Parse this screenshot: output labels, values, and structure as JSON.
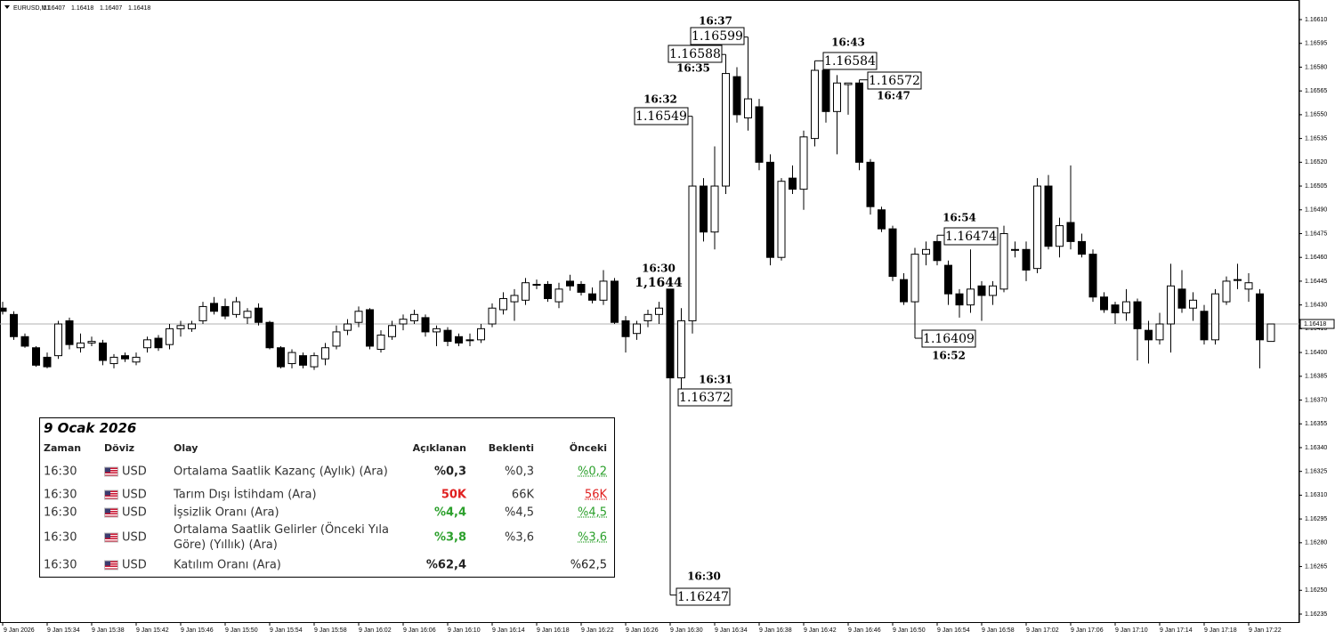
{
  "header": {
    "symbol": "EURUSD,M1"
  },
  "chart_data": {
    "type": "candlestick",
    "categories": [
      "9 Jan 2026",
      null,
      null,
      null,
      "9 Jan 15:34",
      null,
      null,
      null,
      "9 Jan 15:38",
      null,
      null,
      null,
      "9 Jan 15:42",
      null,
      null,
      null,
      "9 Jan 15:46",
      null,
      null,
      null,
      "9 Jan 15:50",
      null,
      null,
      null,
      "9 Jan 15:54",
      null,
      null,
      null,
      "9 Jan 15:58",
      null,
      null,
      null,
      "9 Jan 16:02",
      null,
      null,
      null,
      "9 Jan 16:06",
      null,
      null,
      null,
      "9 Jan 16:10",
      null,
      null,
      null,
      "9 Jan 16:14",
      null,
      null,
      null,
      "9 Jan 16:18",
      null,
      null,
      null,
      "9 Jan 16:22",
      null,
      null,
      null,
      "9 Jan 16:26",
      null,
      null,
      null,
      "9 Jan 16:30",
      null,
      null,
      null,
      "9 Jan 16:34",
      null,
      null,
      null,
      "9 Jan 16:38",
      null,
      null,
      null,
      "9 Jan 16:42",
      null,
      null,
      null,
      "9 Jan 16:46",
      null,
      null,
      null,
      "9 Jan 16:50",
      null,
      null,
      null,
      "9 Jan 16:54",
      null,
      null,
      null,
      "9 Jan 16:58",
      null,
      null,
      null,
      "9 Jan 17:02",
      null,
      null,
      null,
      "9 Jan 17:06",
      null,
      null,
      null,
      "9 Jan 17:10",
      null,
      null,
      null,
      "9 Jan 17:14",
      null,
      null,
      null,
      "9 Jan 17:18",
      null,
      null,
      null,
      "9 Jan 17:22",
      null,
      null
    ],
    "open": [
      1.16428,
      1.16424,
      1.1641,
      1.16403,
      1.16397,
      1.16398,
      1.1642,
      1.16403,
      1.16406,
      1.16406,
      1.16393,
      1.16398,
      1.16394,
      1.16403,
      1.16409,
      1.16405,
      1.16415,
      1.16415,
      1.1642,
      1.16431,
      1.16429,
      1.16424,
      1.16422,
      1.16428,
      1.16419,
      1.16403,
      1.16393,
      1.16398,
      1.16391,
      1.16396,
      1.16404,
      1.16414,
      1.16419,
      1.16427,
      1.16402,
      1.1641,
      1.16418,
      1.1642,
      1.16422,
      1.16413,
      1.16414,
      1.1641,
      1.16408,
      1.16408,
      1.16418,
      1.16427,
      1.16432,
      1.16433,
      1.16443,
      1.16443,
      1.16432,
      1.16445,
      1.16443,
      1.16437,
      1.16433,
      1.16445,
      1.1642,
      1.16412,
      1.1642,
      1.16424,
      1.1644,
      1.16384,
      1.1642,
      1.16505,
      1.16476,
      1.16505,
      1.16574,
      1.16548,
      1.16555,
      1.1652,
      1.1646,
      1.1651,
      1.16503,
      1.16535,
      1.16578,
      1.16552,
      1.16569,
      1.1657,
      1.1652,
      1.1649,
      1.16478,
      1.16446,
      1.16432,
      1.16462,
      1.1647,
      1.16455,
      1.16437,
      1.1643,
      1.16442,
      1.16436,
      1.1644,
      1.16465,
      1.16465,
      1.16453,
      1.16505,
      1.16467,
      1.16482,
      1.1647,
      1.16462,
      1.16435,
      1.1643,
      1.16425,
      1.16432,
      1.16414,
      1.16408,
      1.16418,
      1.1644,
      1.16428,
      1.16426,
      1.16408,
      1.16432,
      1.16446,
      1.1644,
      1.16437,
      1.16407
    ],
    "high": [
      1.16432,
      1.16426,
      1.16412,
      1.16404,
      1.164,
      1.1642,
      1.16422,
      1.16412,
      1.1641,
      1.16408,
      1.16399,
      1.164,
      1.164,
      1.1641,
      1.16411,
      1.16418,
      1.1642,
      1.1642,
      1.16432,
      1.16435,
      1.16434,
      1.16435,
      1.16428,
      1.16431,
      1.1642,
      1.16404,
      1.16402,
      1.164,
      1.164,
      1.16406,
      1.16417,
      1.16421,
      1.16429,
      1.16428,
      1.16414,
      1.1642,
      1.16424,
      1.16427,
      1.16424,
      1.16417,
      1.16416,
      1.16412,
      1.16412,
      1.16418,
      1.16431,
      1.16438,
      1.1644,
      1.16447,
      1.16446,
      1.16445,
      1.16444,
      1.16449,
      1.16445,
      1.16441,
      1.16452,
      1.16447,
      1.16423,
      1.1642,
      1.16427,
      1.16432,
      1.1644,
      1.16428,
      1.16549,
      1.1651,
      1.1653,
      1.16588,
      1.1658,
      1.16599,
      1.1656,
      1.16525,
      1.1651,
      1.16518,
      1.1654,
      1.16584,
      1.1658,
      1.16575,
      1.1657,
      1.16572,
      1.16522,
      1.16492,
      1.1648,
      1.1645,
      1.16466,
      1.1647,
      1.16474,
      1.16458,
      1.1644,
      1.16465,
      1.16445,
      1.16445,
      1.1648,
      1.1647,
      1.1647,
      1.1651,
      1.16512,
      1.16485,
      1.16518,
      1.16475,
      1.16465,
      1.16438,
      1.16432,
      1.1644,
      1.16434,
      1.1642,
      1.16425,
      1.16456,
      1.16452,
      1.16438,
      1.1643,
      1.1644,
      1.16448,
      1.16456,
      1.1645,
      1.1644,
      1.16418
    ],
    "low": [
      1.16424,
      1.16408,
      1.16403,
      1.16391,
      1.1639,
      1.16396,
      1.16402,
      1.164,
      1.16404,
      1.16392,
      1.1639,
      1.16394,
      1.16392,
      1.164,
      1.16401,
      1.16402,
      1.1641,
      1.16413,
      1.16418,
      1.16424,
      1.16421,
      1.16422,
      1.16418,
      1.16417,
      1.16402,
      1.1639,
      1.1639,
      1.1639,
      1.16389,
      1.16392,
      1.16402,
      1.16411,
      1.16416,
      1.16402,
      1.164,
      1.16408,
      1.16414,
      1.16418,
      1.1641,
      1.16404,
      1.16404,
      1.16404,
      1.16404,
      1.16406,
      1.16416,
      1.16424,
      1.1642,
      1.1643,
      1.1644,
      1.16432,
      1.16428,
      1.16439,
      1.16436,
      1.16431,
      1.1643,
      1.16418,
      1.164,
      1.16408,
      1.16416,
      1.16418,
      1.16247,
      1.16372,
      1.16412,
      1.1647,
      1.16465,
      1.165,
      1.16545,
      1.1654,
      1.16515,
      1.16455,
      1.16458,
      1.165,
      1.1649,
      1.1653,
      1.16545,
      1.16525,
      1.1655,
      1.16515,
      1.16487,
      1.16476,
      1.16445,
      1.1643,
      1.16409,
      1.16455,
      1.16455,
      1.1643,
      1.16422,
      1.16425,
      1.1642,
      1.1643,
      1.16438,
      1.1646,
      1.16445,
      1.1645,
      1.16465,
      1.1646,
      1.16465,
      1.1646,
      1.16432,
      1.16425,
      1.16418,
      1.1642,
      1.16395,
      1.16393,
      1.16405,
      1.164,
      1.16425,
      1.1642,
      1.16405,
      1.16405,
      1.1643,
      1.1644,
      1.16432,
      1.1639,
      1.16407
    ],
    "close": [
      1.16426,
      1.1641,
      1.16404,
      1.16392,
      1.16391,
      1.16418,
      1.16405,
      1.16406,
      1.16407,
      1.16395,
      1.16397,
      1.16396,
      1.16397,
      1.16408,
      1.16403,
      1.16415,
      1.16417,
      1.16418,
      1.16429,
      1.16426,
      1.16423,
      1.16432,
      1.16426,
      1.16419,
      1.16403,
      1.16391,
      1.164,
      1.16392,
      1.16398,
      1.16403,
      1.16413,
      1.16418,
      1.16426,
      1.16404,
      1.16411,
      1.16417,
      1.16421,
      1.16424,
      1.16413,
      1.16415,
      1.16407,
      1.16406,
      1.16408,
      1.16415,
      1.16428,
      1.16434,
      1.16436,
      1.16444,
      1.16443,
      1.16434,
      1.1644,
      1.16442,
      1.16438,
      1.16433,
      1.16445,
      1.16419,
      1.1641,
      1.16418,
      1.16424,
      1.16428,
      1.16384,
      1.1642,
      1.16505,
      1.16476,
      1.16505,
      1.16576,
      1.1655,
      1.1656,
      1.1652,
      1.1646,
      1.16508,
      1.16503,
      1.16536,
      1.16578,
      1.16552,
      1.1657,
      1.1657,
      1.1652,
      1.16492,
      1.16478,
      1.16448,
      1.16432,
      1.16462,
      1.16465,
      1.16458,
      1.16437,
      1.1643,
      1.1644,
      1.16436,
      1.16442,
      1.16475,
      1.16465,
      1.16452,
      1.16505,
      1.16467,
      1.1648,
      1.1647,
      1.16462,
      1.16435,
      1.16427,
      1.16425,
      1.16432,
      1.16415,
      1.16408,
      1.16418,
      1.16442,
      1.16428,
      1.16433,
      1.16408,
      1.16437,
      1.16445,
      1.16446,
      1.16444,
      1.16408,
      1.16418
    ],
    "up_color": "#ffffff",
    "down_color": "#000000",
    "line_color": "#000000",
    "ylim": [
      1.1623,
      1.1662
    ],
    "yticks": [
      {
        "value": 1.1661,
        "label": "1.16610"
      },
      1.16595,
      {
        "value": 1.1658,
        "label": "1.16580"
      },
      1.16565,
      {
        "value": 1.1655,
        "label": "1.16550"
      },
      1.16535,
      {
        "value": 1.1652,
        "label": "1.16520"
      },
      1.16505,
      {
        "value": 1.1649,
        "label": "1.16490"
      },
      1.16475,
      {
        "value": 1.1646,
        "label": "1.16460"
      },
      1.16445,
      {
        "value": 1.1643,
        "label": "1.16430"
      },
      1.16415,
      {
        "value": 1.164,
        "label": "1.16400"
      },
      1.16385,
      {
        "value": 1.1637,
        "label": "1.16370"
      },
      1.16355,
      {
        "value": 1.1634,
        "label": "1.16340"
      },
      1.16325,
      {
        "value": 1.1631,
        "label": "1.16310"
      },
      1.16295,
      {
        "value": 1.1628,
        "label": "1.16280"
      },
      1.16265,
      {
        "value": 1.1625,
        "label": "1.16250"
      },
      1.16235
    ],
    "last_price_line": true,
    "annotations": [
      {
        "time": "16:30",
        "price": "1,1644"
      },
      {
        "time": "16:31",
        "price": "1.16372"
      },
      {
        "time": "16:30",
        "price": "1.16247"
      },
      {
        "time": "16:32",
        "price": "1.16549"
      },
      {
        "time": "16:35",
        "price": "1.16588"
      },
      {
        "time": "16:37",
        "price": "1.16599"
      },
      {
        "time": "16:43",
        "price": "1.16584"
      },
      {
        "time": "16:47",
        "price": "1.16572"
      },
      {
        "time": "16:52",
        "price": "1.16409"
      },
      {
        "time": "16:54",
        "price": "1.16474"
      }
    ]
  },
  "calendar": {
    "title": "9 Ocak 2026",
    "columns": [
      "Zaman",
      "Döviz",
      "Olay",
      "Açıklanan",
      "Beklenti",
      "Önceki"
    ],
    "rows": [
      {
        "time": "16:30",
        "currency": "USD",
        "event": "Ortalama Saatlik Kazanç (Aylık) (Ara)",
        "actual": "%0,3",
        "forecast": "%0,3",
        "previous": "%0,2",
        "actual_color": "#222222",
        "previous_color": "#2ca02c"
      },
      {
        "time": "16:30",
        "currency": "USD",
        "event": "Tarım Dışı İstihdam  (Ara)",
        "actual": "50K",
        "forecast": "66K",
        "previous": "56K",
        "actual_color": "#e02020",
        "previous_color": "#e02020"
      },
      {
        "time": "16:30",
        "currency": "USD",
        "event": "İşsizlik Oranı  (Ara)",
        "actual": "%4,4",
        "forecast": "%4,5",
        "previous": "%4,5",
        "actual_color": "#2ca02c",
        "previous_color": "#2ca02c"
      },
      {
        "time": "16:30",
        "currency": "USD",
        "event": "Ortalama Saatlik Gelirler (Önceki Yıla Göre) (Yıllık) (Ara)",
        "actual": "%3,8",
        "forecast": "%3,6",
        "previous": "%3,6",
        "actual_color": "#2ca02c",
        "previous_color": "#2ca02c"
      },
      {
        "time": "16:30",
        "currency": "USD",
        "event": "Katılım Oranı  (Ara)",
        "actual": "%62,4",
        "previous": "%62,5",
        "actual_color": "#222222",
        "previous_color": "#222222"
      }
    ]
  }
}
